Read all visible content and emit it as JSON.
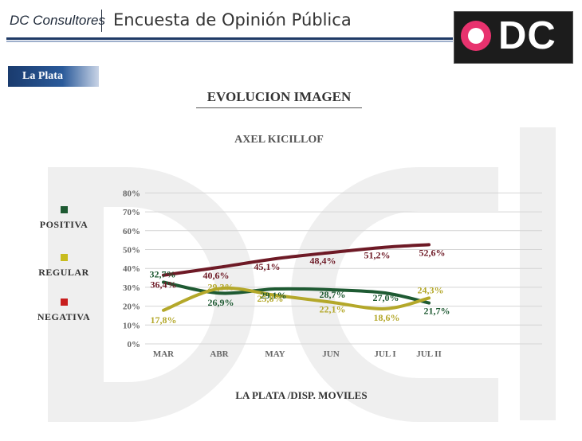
{
  "header": {
    "brand": "DC Consultores",
    "title": "Encuesta de Opinión Pública",
    "logo_text": "DC"
  },
  "region_tab": "La Plata",
  "chart_data": {
    "type": "line",
    "title": "EVOLUCION IMAGEN",
    "subtitle": "AXEL KICILLOF",
    "xlabel": "LA PLATA /DISP. MOVILES",
    "ylabel": "",
    "categories": [
      "MAR",
      "ABR",
      "MAY",
      "JUN",
      "JUL I",
      "JUL II"
    ],
    "ylim": [
      0,
      80
    ],
    "yticks": [
      "0%",
      "10%",
      "20%",
      "30%",
      "40%",
      "50%",
      "60%",
      "70%",
      "80%"
    ],
    "grid": true,
    "legend_position": "left",
    "series": [
      {
        "name": "POSITIVA",
        "color": "#1e5a32",
        "values": [
          32.7,
          26.9,
          29.1,
          28.7,
          27.0,
          21.7
        ],
        "labels": [
          "32,7%",
          "26,9%",
          "29,1%",
          "28,7%",
          "27,0%",
          "21,7%"
        ]
      },
      {
        "name": "REGULAR",
        "color": "#b4a82a",
        "values": [
          17.8,
          29.3,
          25.8,
          22.1,
          18.6,
          24.3
        ],
        "labels": [
          "17,8%",
          "29,3%",
          "25,8%",
          "22,1%",
          "18,6%",
          "24,3%"
        ]
      },
      {
        "name": "NEGATIVA",
        "color": "#6e1a26",
        "values": [
          36.4,
          40.6,
          45.1,
          48.4,
          51.2,
          52.6
        ],
        "labels": [
          "36,4%",
          "40,6%",
          "45,1%",
          "48,4%",
          "51,2%",
          "52,6%"
        ]
      }
    ],
    "legend_colors": [
      "#1e5a32",
      "#c8bc1e",
      "#c81e1e"
    ]
  }
}
